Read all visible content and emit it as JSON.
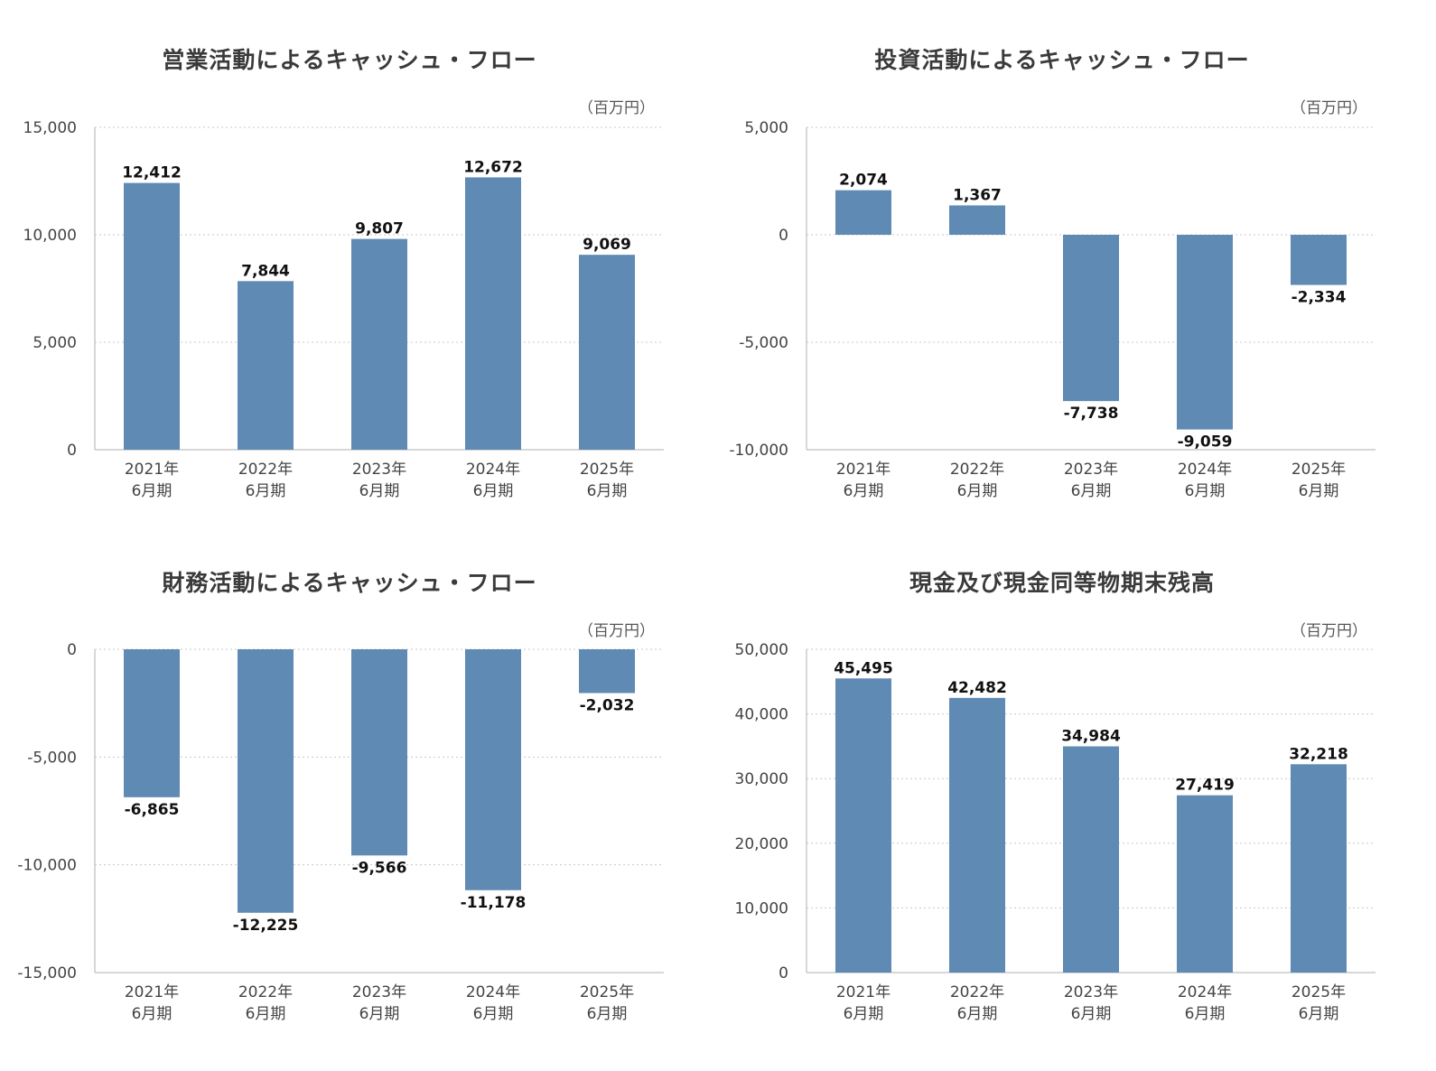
{
  "unit_label": "（百万円）",
  "bar_color": "#5f8ab3",
  "chart_data": [
    {
      "type": "bar",
      "title": "営業活動によるキャッシュ・フロー",
      "unit": "（百万円）",
      "categories": [
        "2021年\n6月期",
        "2022年\n6月期",
        "2023年\n6月期",
        "2024年\n6月期",
        "2025年\n6月期"
      ],
      "values": [
        12412,
        7844,
        9807,
        12672,
        9069
      ],
      "value_labels": [
        "12,412",
        "7,844",
        "9,807",
        "12,672",
        "9,069"
      ],
      "yticks": [
        0,
        5000,
        10000,
        15000
      ],
      "ytick_labels": [
        "0",
        "5,000",
        "10,000",
        "15,000"
      ],
      "ylim": [
        0,
        15000
      ],
      "grid": true
    },
    {
      "type": "bar",
      "title": "投資活動によるキャッシュ・フロー",
      "unit": "（百万円）",
      "categories": [
        "2021年\n6月期",
        "2022年\n6月期",
        "2023年\n6月期",
        "2024年\n6月期",
        "2025年\n6月期"
      ],
      "values": [
        2074,
        1367,
        -7738,
        -9059,
        -2334
      ],
      "value_labels": [
        "2,074",
        "1,367",
        "-7,738",
        "-9,059",
        "-2,334"
      ],
      "yticks": [
        -10000,
        -5000,
        0,
        5000
      ],
      "ytick_labels": [
        "-10,000",
        "-5,000",
        "0",
        "5,000"
      ],
      "ylim": [
        -10000,
        5000
      ],
      "grid": true
    },
    {
      "type": "bar",
      "title": "財務活動によるキャッシュ・フロー",
      "unit": "（百万円）",
      "categories": [
        "2021年\n6月期",
        "2022年\n6月期",
        "2023年\n6月期",
        "2024年\n6月期",
        "2025年\n6月期"
      ],
      "values": [
        -6865,
        -12225,
        -9566,
        -11178,
        -2032
      ],
      "value_labels": [
        "-6,865",
        "-12,225",
        "-9,566",
        "-11,178",
        "-2,032"
      ],
      "yticks": [
        -15000,
        -10000,
        -5000,
        0
      ],
      "ytick_labels": [
        "-15,000",
        "-10,000",
        "-5,000",
        "0"
      ],
      "ylim": [
        -15000,
        0
      ],
      "grid": true
    },
    {
      "type": "bar",
      "title": "現金及び現金同等物期末残高",
      "unit": "（百万円）",
      "categories": [
        "2021年\n6月期",
        "2022年\n6月期",
        "2023年\n6月期",
        "2024年\n6月期",
        "2025年\n6月期"
      ],
      "values": [
        45495,
        42482,
        34984,
        27419,
        32218
      ],
      "value_labels": [
        "45,495",
        "42,482",
        "34,984",
        "27,419",
        "32,218"
      ],
      "yticks": [
        0,
        10000,
        20000,
        30000,
        40000,
        50000
      ],
      "ytick_labels": [
        "0",
        "10,000",
        "20,000",
        "30,000",
        "40,000",
        "50,000"
      ],
      "ylim": [
        0,
        50000
      ],
      "grid": true
    }
  ]
}
